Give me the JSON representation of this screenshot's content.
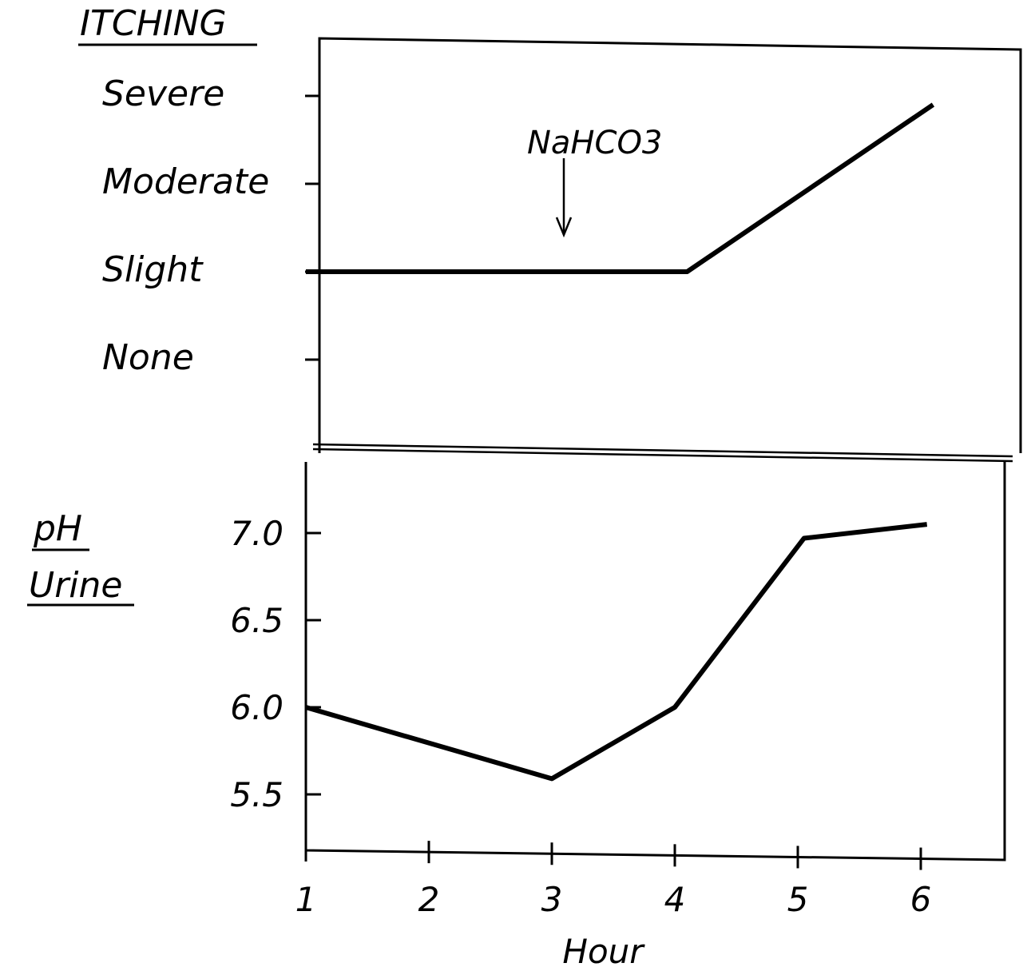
{
  "chart_data": [
    {
      "type": "line",
      "panel": "top",
      "ylabel": "ITCHING",
      "y_categories": [
        "None",
        "Slight",
        "Moderate",
        "Severe"
      ],
      "x": [
        1,
        4.1,
        6.1
      ],
      "values": [
        1,
        1,
        2.9
      ],
      "xlim": [
        1,
        6.7
      ],
      "ylim": [
        -0.3,
        3.5
      ],
      "annotation": {
        "text": "NaHCO3",
        "x": 3.1
      }
    },
    {
      "type": "line",
      "panel": "bottom",
      "ylabel": [
        "pH",
        "Urine"
      ],
      "xlabel": "Hour",
      "x": [
        1,
        3,
        4,
        5.05,
        6.05
      ],
      "values": [
        6.0,
        5.59,
        6.0,
        6.97,
        7.05
      ],
      "yticks": [
        "5.5",
        "6.0",
        "6.5",
        "7.0"
      ],
      "xticks": [
        "1",
        "2",
        "3",
        "4",
        "5",
        "6"
      ],
      "xlim": [
        1,
        6.7
      ],
      "ylim": [
        5.2,
        7.45
      ]
    }
  ]
}
